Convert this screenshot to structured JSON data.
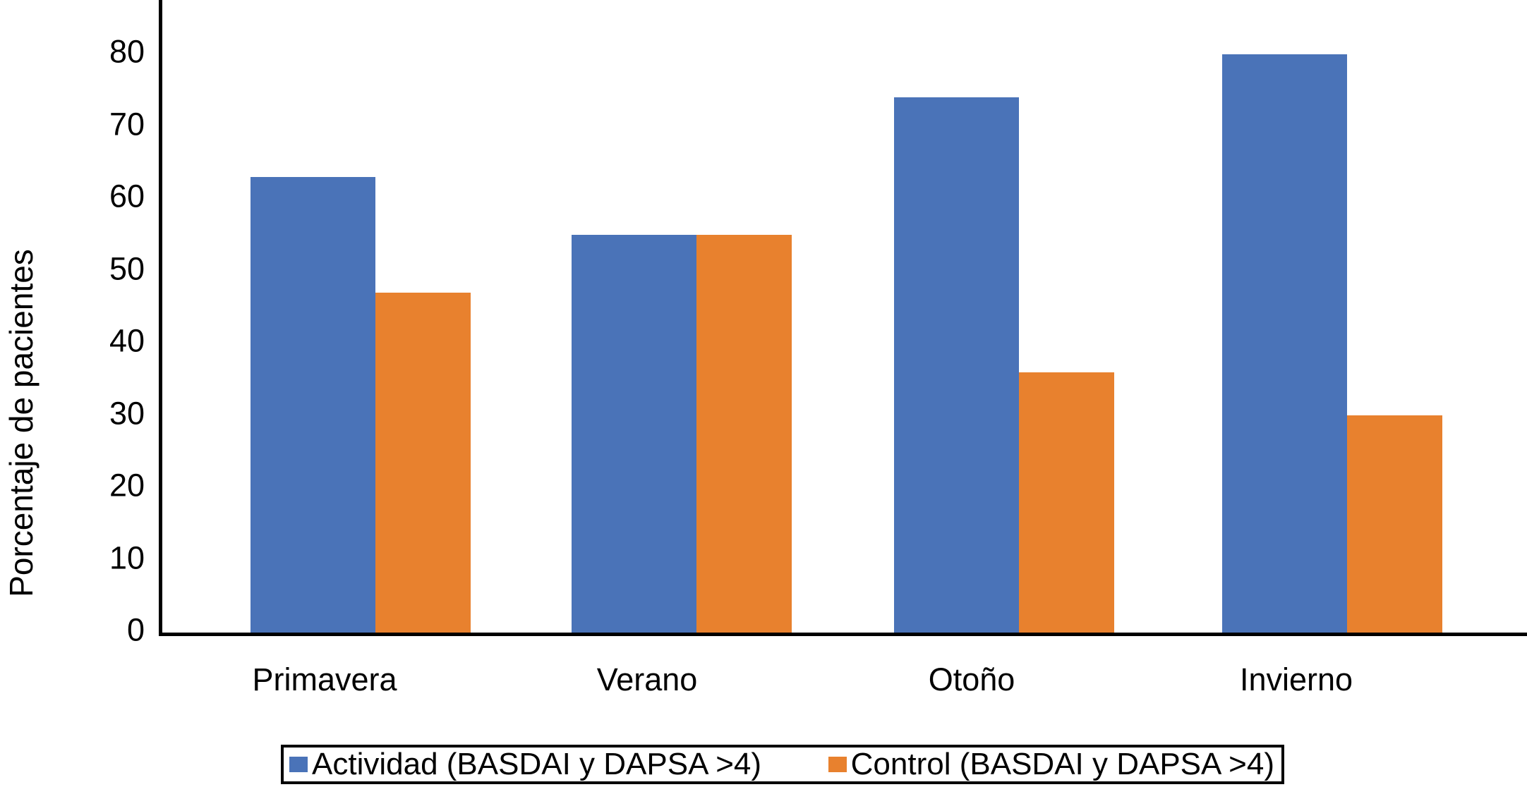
{
  "chart_data": {
    "type": "bar",
    "title": "",
    "xlabel": "",
    "ylabel": "Porcentaje de pacientes",
    "categories": [
      "Primavera",
      "Verano",
      "Otoño",
      "Invierno"
    ],
    "series": [
      {
        "name": "Actividad (BASDAI y DAPSA >4)",
        "color": "#4A73B8",
        "values": [
          63,
          55,
          74,
          80
        ]
      },
      {
        "name": "Control (BASDAI y DAPSA >4)",
        "color": "#E8812E",
        "values": [
          47,
          55,
          36,
          30
        ]
      }
    ],
    "yticks": [
      0,
      10,
      20,
      30,
      40,
      50,
      60,
      70,
      80
    ],
    "ylim": [
      0,
      87.5
    ],
    "grid": false,
    "legend_position": "bottom",
    "axis_color": "#000000",
    "background_color": "#FFFFFF"
  }
}
